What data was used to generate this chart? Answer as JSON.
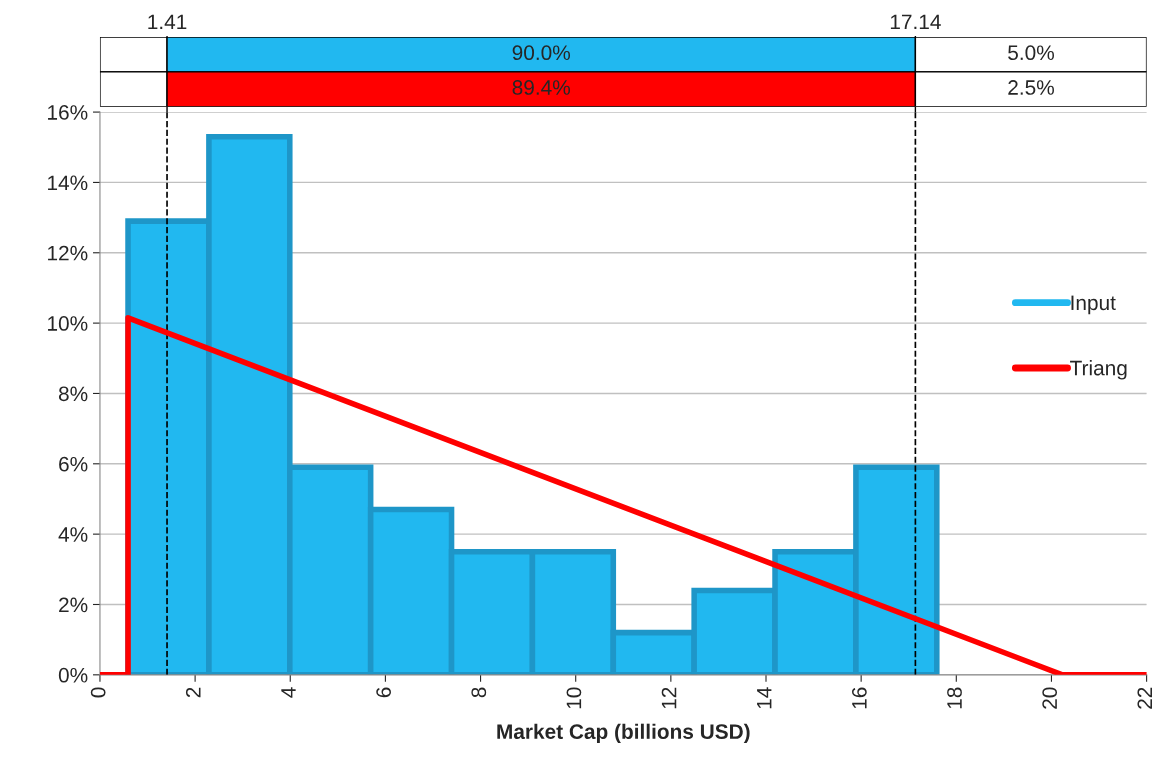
{
  "chart_data": {
    "type": "histogram",
    "xlabel": "Market Cap (billions USD)",
    "bins": [
      0.59,
      2.29,
      3.99,
      5.69,
      7.39,
      9.09,
      10.79,
      12.49,
      14.19,
      15.89,
      17.59
    ],
    "series": [
      {
        "name": "Input",
        "color": "#21b8f0",
        "values": [
          12.9,
          15.3,
          5.9,
          4.7,
          3.5,
          3.5,
          1.2,
          2.4,
          3.5,
          5.9
        ]
      },
      {
        "name": "Triang",
        "type": "line",
        "color": "#ff0000",
        "x": [
          0,
          0.59,
          0.59,
          20.23,
          22
        ],
        "values": [
          0,
          0,
          10.15,
          0,
          0
        ]
      }
    ],
    "ref_lines": [
      {
        "axis": "x",
        "value": 1.41,
        "label": "1.41",
        "color": "#000000",
        "line_style": "dashed"
      },
      {
        "axis": "x",
        "value": 17.14,
        "label": "17.14",
        "color": "#000000",
        "line_style": "dashed"
      }
    ],
    "annotations": [
      "90.0%",
      "5.0%",
      "89.4%",
      "2.5%"
    ],
    "xlim": [
      0,
      22
    ],
    "xticks": [
      0,
      2,
      4,
      6,
      8,
      10,
      12,
      14,
      16,
      18,
      20,
      22
    ],
    "ylim": [
      0,
      16
    ],
    "yticks": [
      {
        "value": 0,
        "label": "0%"
      },
      {
        "value": 2,
        "label": "2%"
      },
      {
        "value": 4,
        "label": "4%"
      },
      {
        "value": 6,
        "label": "6%"
      },
      {
        "value": 8,
        "label": "8%"
      },
      {
        "value": 10,
        "label": "10%"
      },
      {
        "value": 12,
        "label": "12%"
      },
      {
        "value": 14,
        "label": "14%"
      },
      {
        "value": 16,
        "label": "16%"
      }
    ],
    "grid": "y",
    "legend": "right"
  }
}
